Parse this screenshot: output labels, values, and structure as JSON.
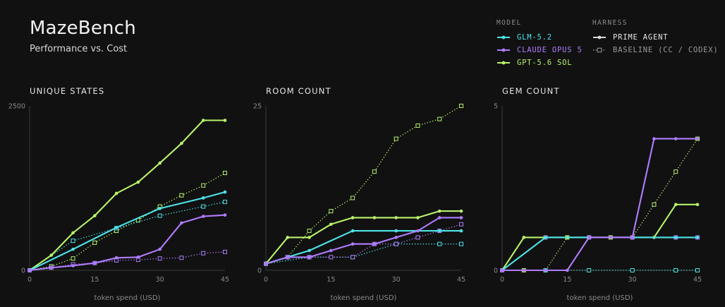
{
  "header": {
    "title": "MazeBench",
    "subtitle": "Performance vs. Cost"
  },
  "legend": {
    "model_heading": "MODEL",
    "harness_heading": "HARNESS",
    "models": [
      {
        "label": "GLM-5.2",
        "color": "#4de3e8"
      },
      {
        "label": "CLAUDE OPUS 5",
        "color": "#b07cff"
      },
      {
        "label": "GPT-5.6 SOL",
        "color": "#b8f26a"
      }
    ],
    "harnesses": [
      {
        "label": "PRIME AGENT",
        "style": "solid"
      },
      {
        "label": "BASELINE (CC / CODEX)",
        "style": "dotted"
      }
    ]
  },
  "chart_data": [
    {
      "type": "line",
      "title": "UNIQUE STATES",
      "xlabel": "token spend (USD)",
      "ylabel": "",
      "xlim": [
        0,
        45
      ],
      "ylim": [
        0,
        2500
      ],
      "x_ticks": [
        0,
        15,
        30,
        45
      ],
      "y_tick_labels": [
        {
          "value": 2500,
          "label": "2500"
        },
        {
          "value": 0,
          "label": "0"
        }
      ],
      "series": [
        {
          "model": "GPT-5.6 SOL",
          "harness": "PRIME AGENT",
          "color": "#b8f26a",
          "x": [
            0,
            5,
            10,
            15,
            20,
            25,
            30,
            35,
            40,
            45
          ],
          "y": [
            0,
            230,
            570,
            830,
            1170,
            1340,
            1630,
            1930,
            2280,
            2280
          ]
        },
        {
          "model": "GPT-5.6 SOL",
          "harness": "BASELINE (CC / CODEX)",
          "color": "#b8f26a",
          "x": [
            0,
            5,
            10,
            15,
            20,
            25,
            30,
            35,
            40,
            45
          ],
          "y": [
            0,
            60,
            180,
            420,
            600,
            760,
            970,
            1140,
            1290,
            1480
          ]
        },
        {
          "model": "GLM-5.2",
          "harness": "PRIME AGENT",
          "color": "#4de3e8",
          "x": [
            0,
            10,
            20,
            30,
            40,
            45
          ],
          "y": [
            0,
            320,
            650,
            940,
            1100,
            1190
          ]
        },
        {
          "model": "GLM-5.2",
          "harness": "BASELINE (CC / CODEX)",
          "color": "#4de3e8",
          "x": [
            0,
            10,
            20,
            30,
            40,
            45
          ],
          "y": [
            0,
            450,
            640,
            830,
            970,
            1040
          ]
        },
        {
          "model": "CLAUDE OPUS 5",
          "harness": "PRIME AGENT",
          "color": "#b07cff",
          "x": [
            0,
            5,
            10,
            15,
            20,
            25,
            30,
            35,
            40,
            45
          ],
          "y": [
            0,
            40,
            70,
            110,
            190,
            200,
            320,
            720,
            820,
            840
          ]
        },
        {
          "model": "CLAUDE OPUS 5",
          "harness": "BASELINE (CC / CODEX)",
          "color": "#b07cff",
          "x": [
            0,
            5,
            10,
            15,
            20,
            25,
            30,
            35,
            40,
            45
          ],
          "y": [
            0,
            40,
            90,
            110,
            150,
            160,
            180,
            190,
            260,
            280
          ]
        }
      ]
    },
    {
      "type": "line",
      "title": "ROOM COUNT",
      "xlabel": "token spend (USD)",
      "ylabel": "",
      "xlim": [
        0,
        45
      ],
      "ylim": [
        0,
        25
      ],
      "x_ticks": [
        0,
        15,
        30,
        45
      ],
      "y_tick_labels": [
        {
          "value": 25,
          "label": "25"
        },
        {
          "value": 0,
          "label": "0"
        }
      ],
      "series": [
        {
          "model": "GPT-5.6 SOL",
          "harness": "PRIME AGENT",
          "color": "#b8f26a",
          "x": [
            0,
            5,
            10,
            15,
            20,
            25,
            30,
            35,
            40,
            45
          ],
          "y": [
            1,
            5,
            5,
            7,
            8,
            8,
            8,
            8,
            9,
            9
          ]
        },
        {
          "model": "GPT-5.6 SOL",
          "harness": "BASELINE (CC / CODEX)",
          "color": "#b8f26a",
          "x": [
            0,
            5,
            10,
            15,
            20,
            25,
            30,
            35,
            40,
            45
          ],
          "y": [
            1,
            2,
            6,
            9,
            11,
            15,
            20,
            22,
            23,
            25
          ]
        },
        {
          "model": "GLM-5.2",
          "harness": "PRIME AGENT",
          "color": "#4de3e8",
          "x": [
            0,
            10,
            20,
            30,
            40,
            45
          ],
          "y": [
            1,
            3,
            6,
            6,
            6,
            6
          ]
        },
        {
          "model": "GLM-5.2",
          "harness": "BASELINE (CC / CODEX)",
          "color": "#4de3e8",
          "x": [
            0,
            10,
            20,
            30,
            40,
            45
          ],
          "y": [
            1,
            2,
            2,
            4,
            4,
            4
          ]
        },
        {
          "model": "CLAUDE OPUS 5",
          "harness": "PRIME AGENT",
          "color": "#b07cff",
          "x": [
            0,
            5,
            10,
            15,
            20,
            25,
            30,
            35,
            40,
            45
          ],
          "y": [
            1,
            2,
            2,
            3,
            4,
            4,
            5,
            6,
            8,
            8
          ]
        },
        {
          "model": "CLAUDE OPUS 5",
          "harness": "BASELINE (CC / CODEX)",
          "color": "#b07cff",
          "x": [
            0,
            5,
            10,
            15,
            20,
            25,
            30,
            35,
            40,
            45
          ],
          "y": [
            1,
            2,
            2,
            2,
            2,
            4,
            4,
            5,
            6,
            7
          ]
        }
      ]
    },
    {
      "type": "line",
      "title": "GEM COUNT",
      "xlabel": "token spend (USD)",
      "ylabel": "",
      "xlim": [
        0,
        45
      ],
      "ylim": [
        0,
        5
      ],
      "x_ticks": [
        0,
        15,
        30,
        45
      ],
      "y_tick_labels": [
        {
          "value": 5,
          "label": "5"
        },
        {
          "value": 0,
          "label": "0"
        }
      ],
      "series": [
        {
          "model": "GPT-5.6 SOL",
          "harness": "PRIME AGENT",
          "color": "#b8f26a",
          "x": [
            0,
            5,
            10,
            15,
            20,
            25,
            30,
            35,
            40,
            45
          ],
          "y": [
            0,
            1,
            1,
            1,
            1,
            1,
            1,
            1,
            2,
            2
          ]
        },
        {
          "model": "GPT-5.6 SOL",
          "harness": "BASELINE (CC / CODEX)",
          "color": "#b8f26a",
          "x": [
            0,
            5,
            10,
            15,
            20,
            25,
            30,
            35,
            40,
            45
          ],
          "y": [
            0,
            0,
            0,
            1,
            1,
            1,
            1,
            2,
            3,
            4
          ]
        },
        {
          "model": "GLM-5.2",
          "harness": "PRIME AGENT",
          "color": "#4de3e8",
          "x": [
            0,
            10,
            20,
            30,
            40,
            45
          ],
          "y": [
            0,
            1,
            1,
            1,
            1,
            1
          ]
        },
        {
          "model": "GLM-5.2",
          "harness": "BASELINE (CC / CODEX)",
          "color": "#4de3e8",
          "x": [
            0,
            10,
            20,
            30,
            40,
            45
          ],
          "y": [
            0,
            0,
            0,
            0,
            0,
            0
          ]
        },
        {
          "model": "CLAUDE OPUS 5",
          "harness": "PRIME AGENT",
          "color": "#b07cff",
          "x": [
            0,
            5,
            10,
            15,
            20,
            25,
            30,
            35,
            40,
            45
          ],
          "y": [
            0,
            0,
            0,
            0,
            1,
            1,
            1,
            4,
            4,
            4
          ]
        },
        {
          "model": "CLAUDE OPUS 5",
          "harness": "BASELINE (CC / CODEX)",
          "color": "#b07cff",
          "x": [
            0,
            10,
            20,
            30,
            40,
            45
          ],
          "y": [
            0,
            1,
            1,
            1,
            1,
            1
          ]
        }
      ]
    }
  ]
}
